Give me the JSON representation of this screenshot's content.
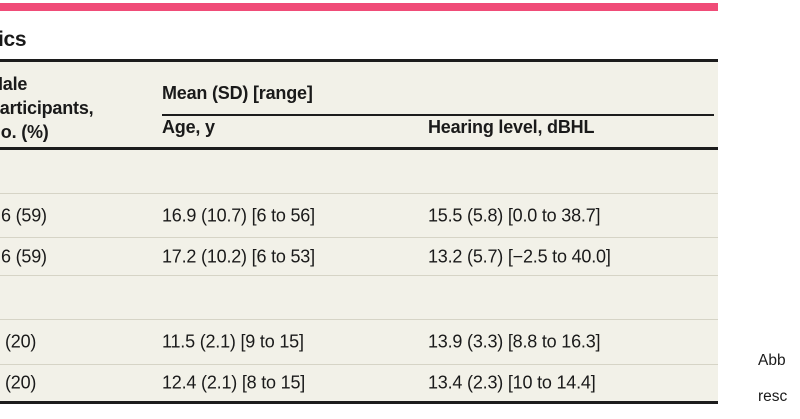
{
  "page": {
    "accent_color": "#f04c78",
    "table_background": "#f2f1e8",
    "title_fragment": "ics"
  },
  "table": {
    "col1_header_lines": [
      "Male",
      "Participants,",
      "No. (%)"
    ],
    "spanner_label": "Mean (SD) [range]",
    "col_age_label": "Age, y",
    "col_hearing_label": "Hearing level, dBHL",
    "rows": [
      {
        "col1": "6 (59)",
        "age": "16.9 (10.7) [6 to 56]",
        "hearing": "15.5 (5.8) [0.0 to 38.7]"
      },
      {
        "col1": "6 (59)",
        "age": "17.2 (10.2) [6 to 53]",
        "hearing": "13.2 (5.7) [−2.5 to 40.0]"
      },
      {
        "col1": "(20)",
        "age": "11.5 (2.1) [9 to 15]",
        "hearing": "13.9 (3.3) [8.8 to 16.3]"
      },
      {
        "col1": "(20)",
        "age": "12.4 (2.1) [8 to 15]",
        "hearing": "13.4 (2.3) [10 to 14.4]"
      }
    ]
  },
  "footnote": {
    "line1_fragment": "Abb",
    "line2_fragment": "resc"
  }
}
